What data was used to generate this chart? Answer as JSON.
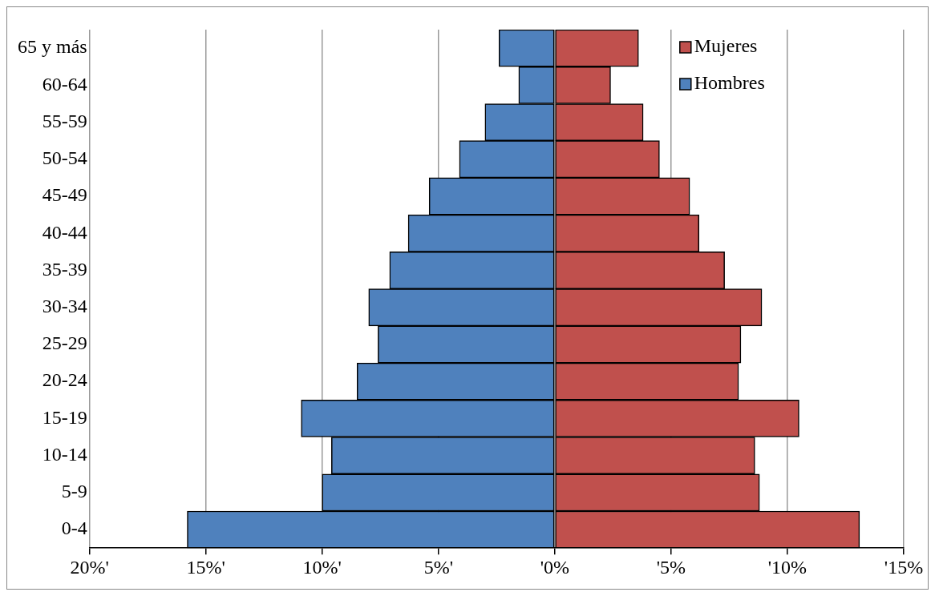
{
  "chart_data": {
    "type": "bar",
    "orientation": "horizontal",
    "stacked": true,
    "categories": [
      "65 y más",
      "60-64",
      "55-59",
      "50-54",
      "45-49",
      "40-44",
      "35-39",
      "30-34",
      "25-29",
      "20-24",
      "15-19",
      "10-14",
      "5-9",
      "0-4"
    ],
    "series": [
      {
        "name": "Mujeres",
        "color": "#c0504d",
        "values": [
          3.6,
          2.4,
          3.8,
          4.5,
          5.8,
          6.2,
          7.3,
          8.9,
          8.0,
          7.9,
          10.5,
          8.6,
          8.8,
          13.1
        ]
      },
      {
        "name": "Hombres",
        "color": "#4f81bd",
        "values": [
          -2.4,
          -1.55,
          -3.0,
          -4.1,
          -5.4,
          -6.3,
          -7.1,
          -8.0,
          -7.6,
          -8.5,
          -10.9,
          -9.6,
          -10.0,
          -15.8
        ]
      }
    ],
    "xlim": [
      -20,
      15
    ],
    "xticks": [
      {
        "value": -20,
        "label": "20%'"
      },
      {
        "value": -15,
        "label": "15%'"
      },
      {
        "value": -10,
        "label": "10%'"
      },
      {
        "value": -5,
        "label": "5%'"
      },
      {
        "value": 0,
        "label": "'0%"
      },
      {
        "value": 5,
        "label": "'5%"
      },
      {
        "value": 10,
        "label": "'10%"
      },
      {
        "value": 15,
        "label": "'15%"
      }
    ],
    "grid": "x",
    "legend": "top right"
  }
}
